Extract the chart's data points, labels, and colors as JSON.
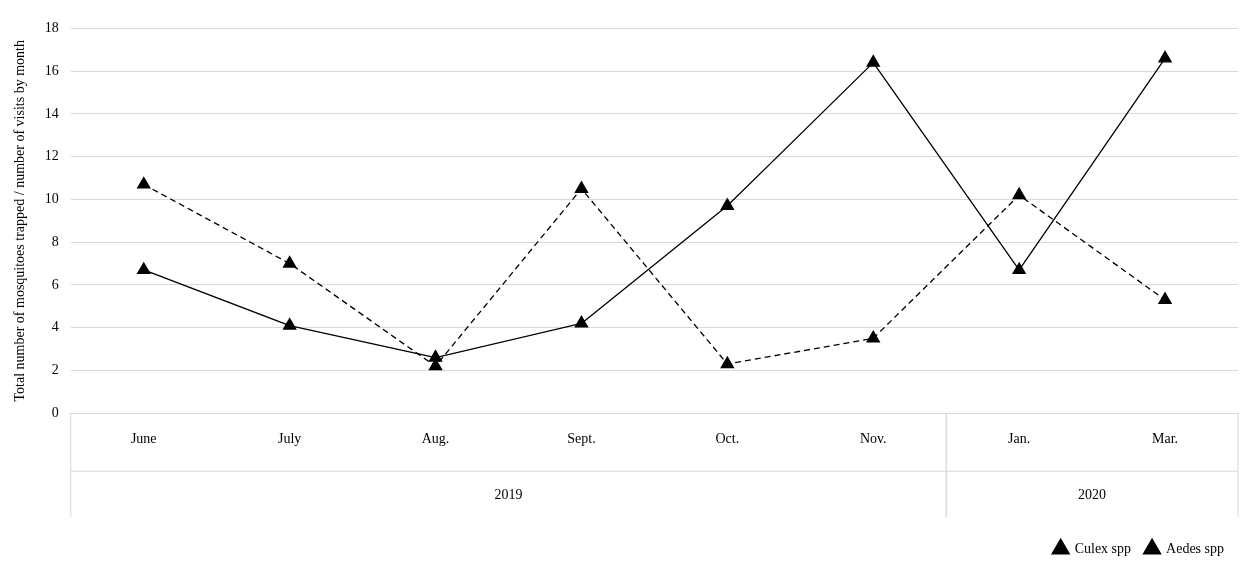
{
  "chart_data": {
    "type": "line",
    "ylabel": "Total number of mosquitoes trapped / number of visits by month",
    "categories": [
      "June",
      "July",
      "Aug.",
      "Sept.",
      "Oct.",
      "Nov.",
      "Jan.",
      "Mar."
    ],
    "series": [
      {
        "name": "Culex spp",
        "color": "#000000",
        "line_style": "solid",
        "values": [
          6.7,
          4.1,
          2.6,
          4.2,
          9.7,
          16.4,
          6.7,
          16.6
        ]
      },
      {
        "name": "Aedes spp",
        "color": "#000000",
        "line_style": "dashed",
        "values": [
          10.7,
          7.0,
          2.2,
          10.5,
          2.3,
          3.5,
          10.2,
          5.3
        ]
      }
    ],
    "annotations": [
      "2019",
      "2020"
    ],
    "ylim": [
      0,
      18
    ],
    "yticks": [
      0,
      2,
      4,
      6,
      8,
      10,
      12,
      14,
      16,
      18
    ],
    "grid": "y",
    "marker": "triangle",
    "legend": "bottom right"
  }
}
